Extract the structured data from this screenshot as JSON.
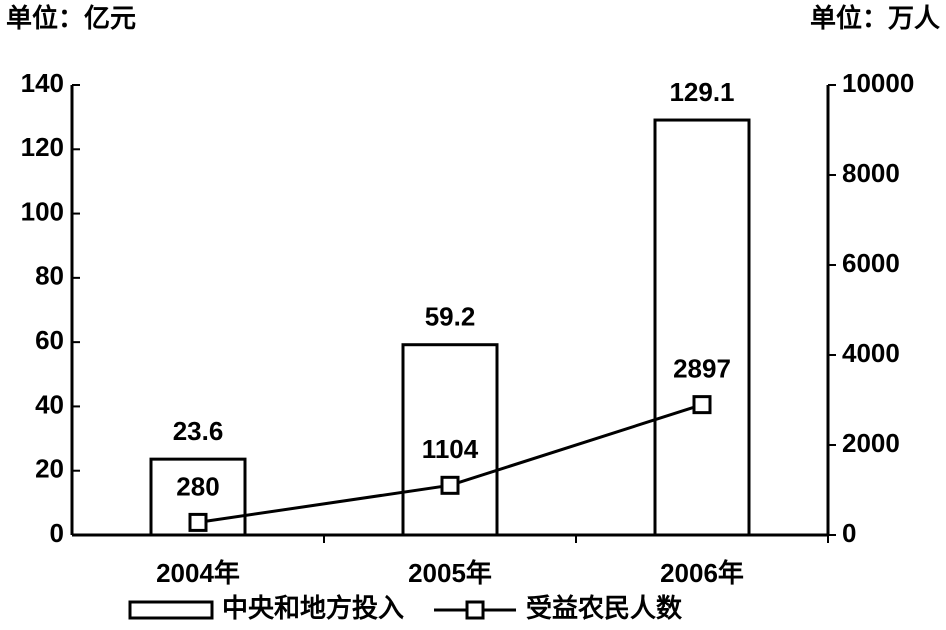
{
  "chart_data": {
    "type": "bar",
    "y_label": "单位：亿元",
    "y2_label": "单位：万人",
    "categories": [
      "2004年",
      "2005年",
      "2006年"
    ],
    "series": [
      {
        "name": "中央和地方投入",
        "type": "bar",
        "color": "#000000",
        "values": [
          23.6,
          59.2,
          129.1
        ]
      },
      {
        "name": "受益农民人数",
        "type": "line",
        "axis": "y2",
        "color": "#000000",
        "values": [
          280,
          1104,
          2897
        ]
      }
    ],
    "ylim": [
      0,
      140
    ],
    "yticks": [
      0,
      20,
      40,
      60,
      80,
      100,
      120,
      140
    ],
    "y2lim": [
      0,
      10000
    ],
    "y2ticks": [
      0,
      2000,
      4000,
      6000,
      8000,
      10000
    ],
    "legend": "bottom"
  }
}
